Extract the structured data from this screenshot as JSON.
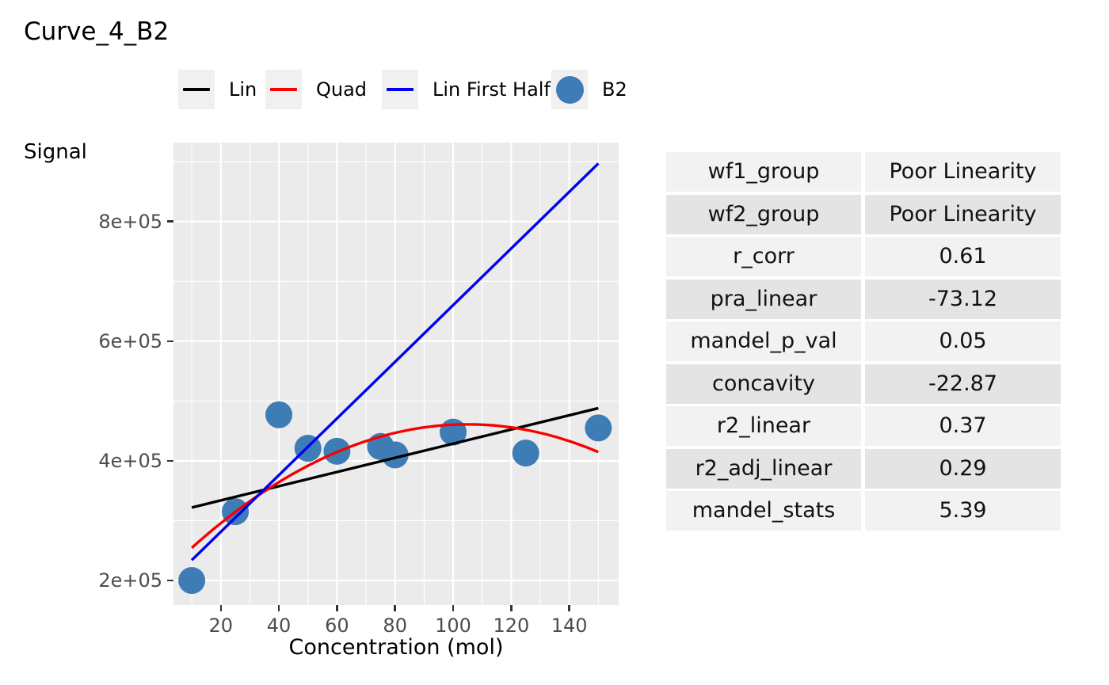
{
  "title": "Curve_4_B2",
  "legend": {
    "items": [
      {
        "label": "Lin",
        "type": "line",
        "color": "#000000"
      },
      {
        "label": "Quad",
        "type": "line",
        "color": "#f80000"
      },
      {
        "label": "Lin First Half",
        "type": "line",
        "color": "#0000f0"
      },
      {
        "label": "B2",
        "type": "point",
        "color": "#3e7cb6"
      }
    ]
  },
  "chart_data": {
    "type": "scatter",
    "title": "Curve_4_B2",
    "xlabel": "Concentration (mol)",
    "ylabel": "Signal",
    "xlim": [
      3.7,
      157
    ],
    "ylim": [
      159000,
      932000
    ],
    "xticks": [
      20,
      40,
      60,
      80,
      100,
      120,
      140
    ],
    "xtick_labels": [
      "20",
      "40",
      "60",
      "80",
      "100",
      "120",
      "140"
    ],
    "ytick_values": [
      200000,
      400000,
      600000,
      800000
    ],
    "ytick_labels": [
      "2e+05",
      "4e+05",
      "6e+05",
      "8e+05"
    ],
    "x_minor": [
      10,
      30,
      50,
      70,
      90,
      110,
      130,
      150
    ],
    "y_minor": [
      300000,
      500000,
      700000,
      900000
    ],
    "grid": true,
    "legend_position": "top",
    "panel_background": "#ebebeb",
    "series": [
      {
        "name": "B2",
        "type": "scatter",
        "color": "#3e7cb6",
        "marker_radius": 17,
        "points": [
          [
            10,
            200000
          ],
          [
            25,
            315000
          ],
          [
            40,
            477000
          ],
          [
            50,
            421000
          ],
          [
            60,
            416000
          ],
          [
            75,
            424000
          ],
          [
            80,
            410000
          ],
          [
            100,
            448000
          ],
          [
            125,
            413000
          ],
          [
            150,
            455000
          ]
        ]
      },
      {
        "name": "Lin",
        "type": "line",
        "color": "#000000",
        "points": [
          [
            10,
            322000
          ],
          [
            150,
            488000
          ]
        ]
      },
      {
        "name": "Quad",
        "type": "quadratic",
        "color": "#f80000",
        "vertex": [
          105,
          461000
        ],
        "a": -22.87,
        "x_range": [
          10,
          150
        ]
      },
      {
        "name": "Lin First Half",
        "type": "line",
        "color": "#0000f0",
        "points": [
          [
            10,
            234000
          ],
          [
            150,
            897000
          ]
        ]
      }
    ]
  },
  "stats_table": {
    "rows": [
      {
        "key": "wf1_group",
        "value": "Poor Linearity"
      },
      {
        "key": "wf2_group",
        "value": "Poor Linearity"
      },
      {
        "key": "r_corr",
        "value": "0.61"
      },
      {
        "key": "pra_linear",
        "value": "-73.12"
      },
      {
        "key": "mandel_p_val",
        "value": "0.05"
      },
      {
        "key": "concavity",
        "value": "-22.87"
      },
      {
        "key": "r2_linear",
        "value": "0.37"
      },
      {
        "key": "r2_adj_linear",
        "value": "0.29"
      },
      {
        "key": "mandel_stats",
        "value": "5.39"
      }
    ],
    "row_color_light": "#f2f2f2",
    "row_color_dark": "#e4e4e4"
  },
  "colors": {
    "panel_background": "#ebebeb",
    "grid": "#ffffff",
    "tick_text": "#4d4d4d",
    "tick_mark": "#333333",
    "legend_key_background": "#f0f0f0"
  }
}
